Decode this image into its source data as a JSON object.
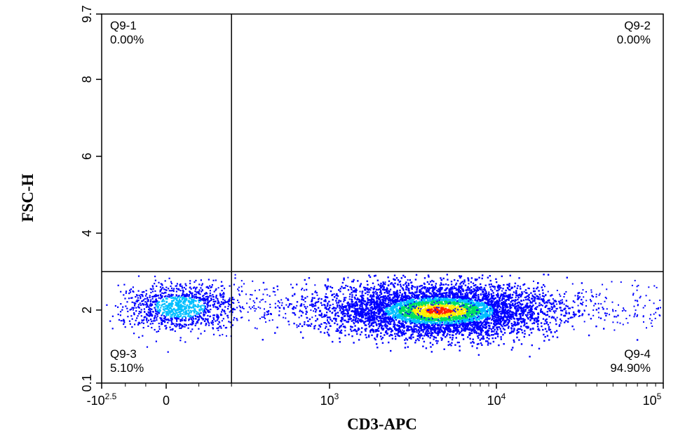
{
  "chart_data": {
    "type": "scatter",
    "title": "",
    "xlabel": "CD3-APC",
    "ylabel": "FSC-H",
    "xscale": "biexponential",
    "x_ticks": [
      {
        "base": "-10",
        "exp": "2.5",
        "value": -316
      },
      {
        "base": "0",
        "exp": "",
        "value": 0
      },
      {
        "base": "10",
        "exp": "3",
        "value": 1000
      },
      {
        "base": "10",
        "exp": "4",
        "value": 10000
      },
      {
        "base": "10",
        "exp": "5",
        "value": 100000
      }
    ],
    "y_ticks": [
      "0.1",
      "2",
      "4",
      "6",
      "8",
      "9.7"
    ],
    "ylim": [
      0.1,
      9.7
    ],
    "gate": {
      "x": 400,
      "y": 3
    },
    "quadrants": [
      {
        "name": "Q9-1",
        "percent": "0.00%"
      },
      {
        "name": "Q9-2",
        "percent": "0.00%"
      },
      {
        "name": "Q9-3",
        "percent": "5.10%"
      },
      {
        "name": "Q9-4",
        "percent": "94.90%"
      }
    ],
    "populations": [
      {
        "label": "Q9-3",
        "center_x": 80,
        "center_y": 2.1,
        "fraction": 0.051
      },
      {
        "label": "Q9-4",
        "center_x": 4500,
        "center_y": 2.0,
        "fraction": 0.949
      }
    ],
    "density_colors": [
      "#0000ff",
      "#00bfff",
      "#00e060",
      "#ffee00",
      "#ff2000"
    ]
  }
}
